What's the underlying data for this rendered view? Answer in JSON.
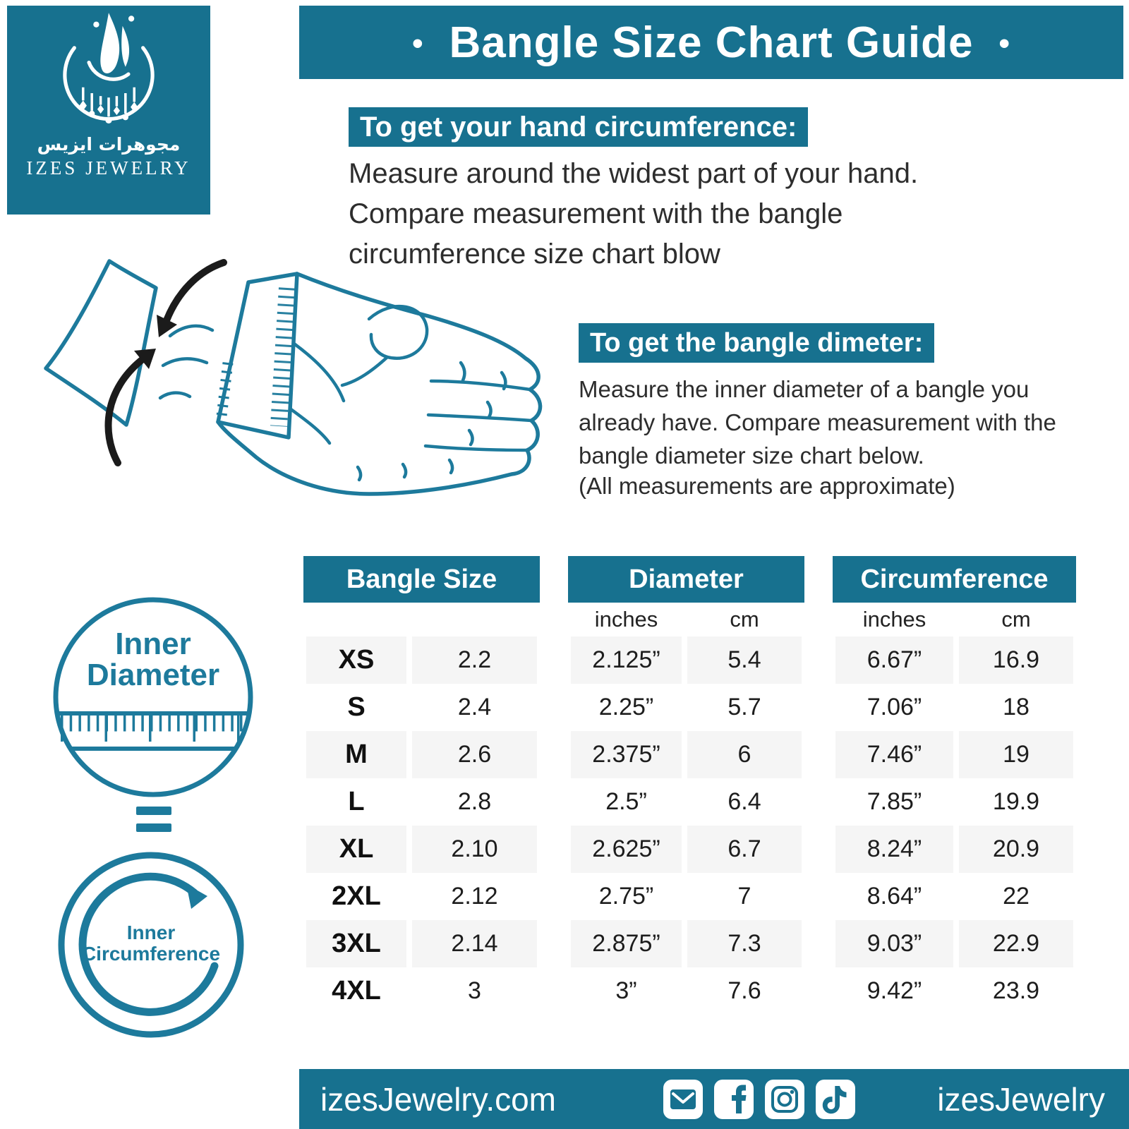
{
  "colors": {
    "accent": "#17718f",
    "line_teal": "#1d7a9c",
    "row_band": "#f5f5f5",
    "body_text": "#2d2d2d",
    "arrow_black": "#1b1b1b"
  },
  "header": {
    "bullet_left": "•",
    "title": "Bangle Size Chart Guide",
    "bullet_right": "•"
  },
  "brand": {
    "arabic_name": "مجوهرات ايزيس",
    "latin_name": "IZES JEWELRY"
  },
  "sections": {
    "hand_circumference": {
      "heading": "To get your hand circumference:",
      "body": "Measure around the widest part of your hand.\nCompare measurement with the bangle\ncircumference size chart blow"
    },
    "bangle_diameter": {
      "heading": "To get the bangle dimeter:",
      "body": "Measure the inner diameter of a bangle you\nalready have. Compare measurement with the\nbangle diameter size chart below.",
      "note": "(All measurements are approximate)"
    }
  },
  "diagram_labels": {
    "inner_diameter_line1": "Inner",
    "inner_diameter_line2": "Diameter",
    "equals": "=",
    "inner_circumference_line1": "Inner",
    "inner_circumference_line2": "Circumference"
  },
  "table": {
    "groups": [
      "Bangle Size",
      "Diameter",
      "Circumference"
    ],
    "sub_labels": {
      "diameter": [
        "inches",
        "cm"
      ],
      "circumference": [
        "inches",
        "cm"
      ]
    },
    "rows": [
      {
        "size": "XS",
        "size_num": "2.2",
        "d_in": "2.125”",
        "d_cm": "5.4",
        "c_in": "6.67”",
        "c_cm": "16.9"
      },
      {
        "size": "S",
        "size_num": "2.4",
        "d_in": "2.25”",
        "d_cm": "5.7",
        "c_in": "7.06”",
        "c_cm": "18"
      },
      {
        "size": "M",
        "size_num": "2.6",
        "d_in": "2.375”",
        "d_cm": "6",
        "c_in": "7.46”",
        "c_cm": "19"
      },
      {
        "size": "L",
        "size_num": "2.8",
        "d_in": "2.5”",
        "d_cm": "6.4",
        "c_in": "7.85”",
        "c_cm": "19.9"
      },
      {
        "size": "XL",
        "size_num": "2.10",
        "d_in": "2.625”",
        "d_cm": "6.7",
        "c_in": "8.24”",
        "c_cm": "20.9"
      },
      {
        "size": "2XL",
        "size_num": "2.12",
        "d_in": "2.75”",
        "d_cm": "7",
        "c_in": "8.64”",
        "c_cm": "22"
      },
      {
        "size": "3XL",
        "size_num": "2.14",
        "d_in": "2.875”",
        "d_cm": "7.3",
        "c_in": "9.03”",
        "c_cm": "22.9"
      },
      {
        "size": "4XL",
        "size_num": "3",
        "d_in": "3”",
        "d_cm": "7.6",
        "c_in": "9.42”",
        "c_cm": "23.9"
      }
    ]
  },
  "chart_data": {
    "type": "table",
    "title": "Bangle Size Chart Guide",
    "columns": [
      "Bangle Size",
      "Bangle Size (number)",
      "Diameter inches",
      "Diameter cm",
      "Circumference inches",
      "Circumference cm"
    ],
    "rows": [
      [
        "XS",
        "2.2",
        "2.125”",
        "5.4",
        "6.67”",
        "16.9"
      ],
      [
        "S",
        "2.4",
        "2.25”",
        "5.7",
        "7.06”",
        "18"
      ],
      [
        "M",
        "2.6",
        "2.375”",
        "6",
        "7.46”",
        "19"
      ],
      [
        "L",
        "2.8",
        "2.5”",
        "6.4",
        "7.85”",
        "19.9"
      ],
      [
        "XL",
        "2.10",
        "2.625”",
        "6.7",
        "8.24”",
        "20.9"
      ],
      [
        "2XL",
        "2.12",
        "2.75”",
        "7",
        "8.64”",
        "22"
      ],
      [
        "3XL",
        "2.14",
        "2.875”",
        "7.3",
        "9.03”",
        "22.9"
      ],
      [
        "4XL",
        "3",
        "3”",
        "7.6",
        "9.42”",
        "23.9"
      ]
    ]
  },
  "footer": {
    "website": "izesJewelry.com",
    "handle": "izesJewelry",
    "icons": [
      "email-icon",
      "facebook-icon",
      "instagram-icon",
      "tiktok-icon"
    ]
  }
}
